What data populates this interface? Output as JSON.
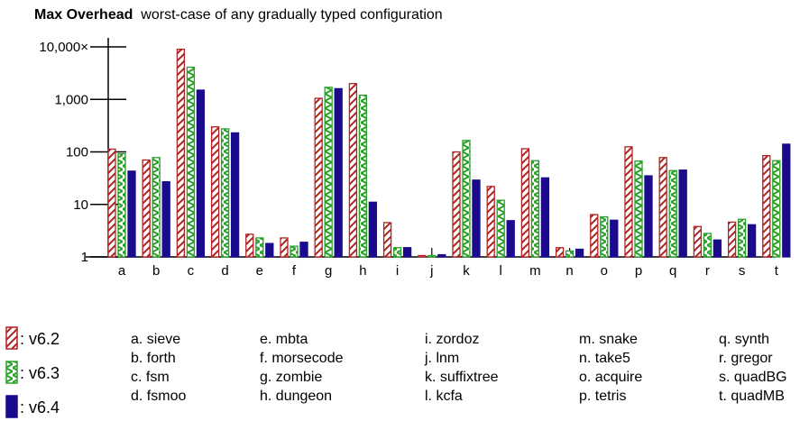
{
  "chart_data": {
    "type": "bar",
    "title": "Max Overhead",
    "subtitle": "worst-case of any gradually typed configuration",
    "xlabel": "",
    "ylabel": "",
    "yscale": "log",
    "ylim": [
      1,
      10000
    ],
    "yticks": [
      1,
      10,
      100,
      1000,
      10000
    ],
    "ytick_labels": [
      "1",
      "10",
      "100",
      "1,000",
      "10,000×"
    ],
    "categories": [
      "a",
      "b",
      "c",
      "d",
      "e",
      "f",
      "g",
      "h",
      "i",
      "j",
      "k",
      "l",
      "m",
      "n",
      "o",
      "p",
      "q",
      "r",
      "s",
      "t"
    ],
    "series": [
      {
        "name": "v6.2",
        "color": "#b22222",
        "pattern": "hatch",
        "values": [
          113,
          70,
          9000,
          300,
          2.7,
          2.3,
          1050,
          2000,
          4.5,
          1.0,
          100,
          22,
          115,
          1.5,
          6.4,
          125,
          78,
          3.8,
          4.6,
          85
        ]
      },
      {
        "name": "v6.3",
        "color": "#2aa02a",
        "pattern": "zigzag",
        "values": [
          92,
          78,
          4100,
          275,
          2.3,
          1.6,
          1700,
          1200,
          1.5,
          1.0,
          165,
          12,
          68,
          1.3,
          5.8,
          67,
          44,
          2.8,
          5.2,
          68
        ]
      },
      {
        "name": "v6.4",
        "color": "#1a0a8c",
        "pattern": "solid",
        "values": [
          43,
          27,
          1500,
          230,
          1.8,
          1.9,
          1600,
          11,
          1.5,
          1.1,
          29,
          4.9,
          32,
          1.4,
          5.0,
          35,
          45,
          2.1,
          4.1,
          140
        ]
      }
    ],
    "legend": [
      "v6.2",
      "v6.3",
      "v6.4"
    ],
    "legend_placement": "bottom-left"
  },
  "legend_labels": [
    ": v6.2",
    ": v6.3",
    ": v6.4"
  ],
  "key_columns": [
    [
      "a. sieve",
      "b. forth",
      "c. fsm",
      "d. fsmoo"
    ],
    [
      "e. mbta",
      "f. morsecode",
      "g. zombie",
      "h. dungeon"
    ],
    [
      "i. zordoz",
      "j. lnm",
      "k. suffixtree",
      "l. kcfa"
    ],
    [
      "m. snake",
      "n. take5",
      "o. acquire",
      "p. tetris"
    ],
    [
      "q. synth",
      "r. gregor",
      "s. quadBG",
      "t. quadMB"
    ]
  ]
}
